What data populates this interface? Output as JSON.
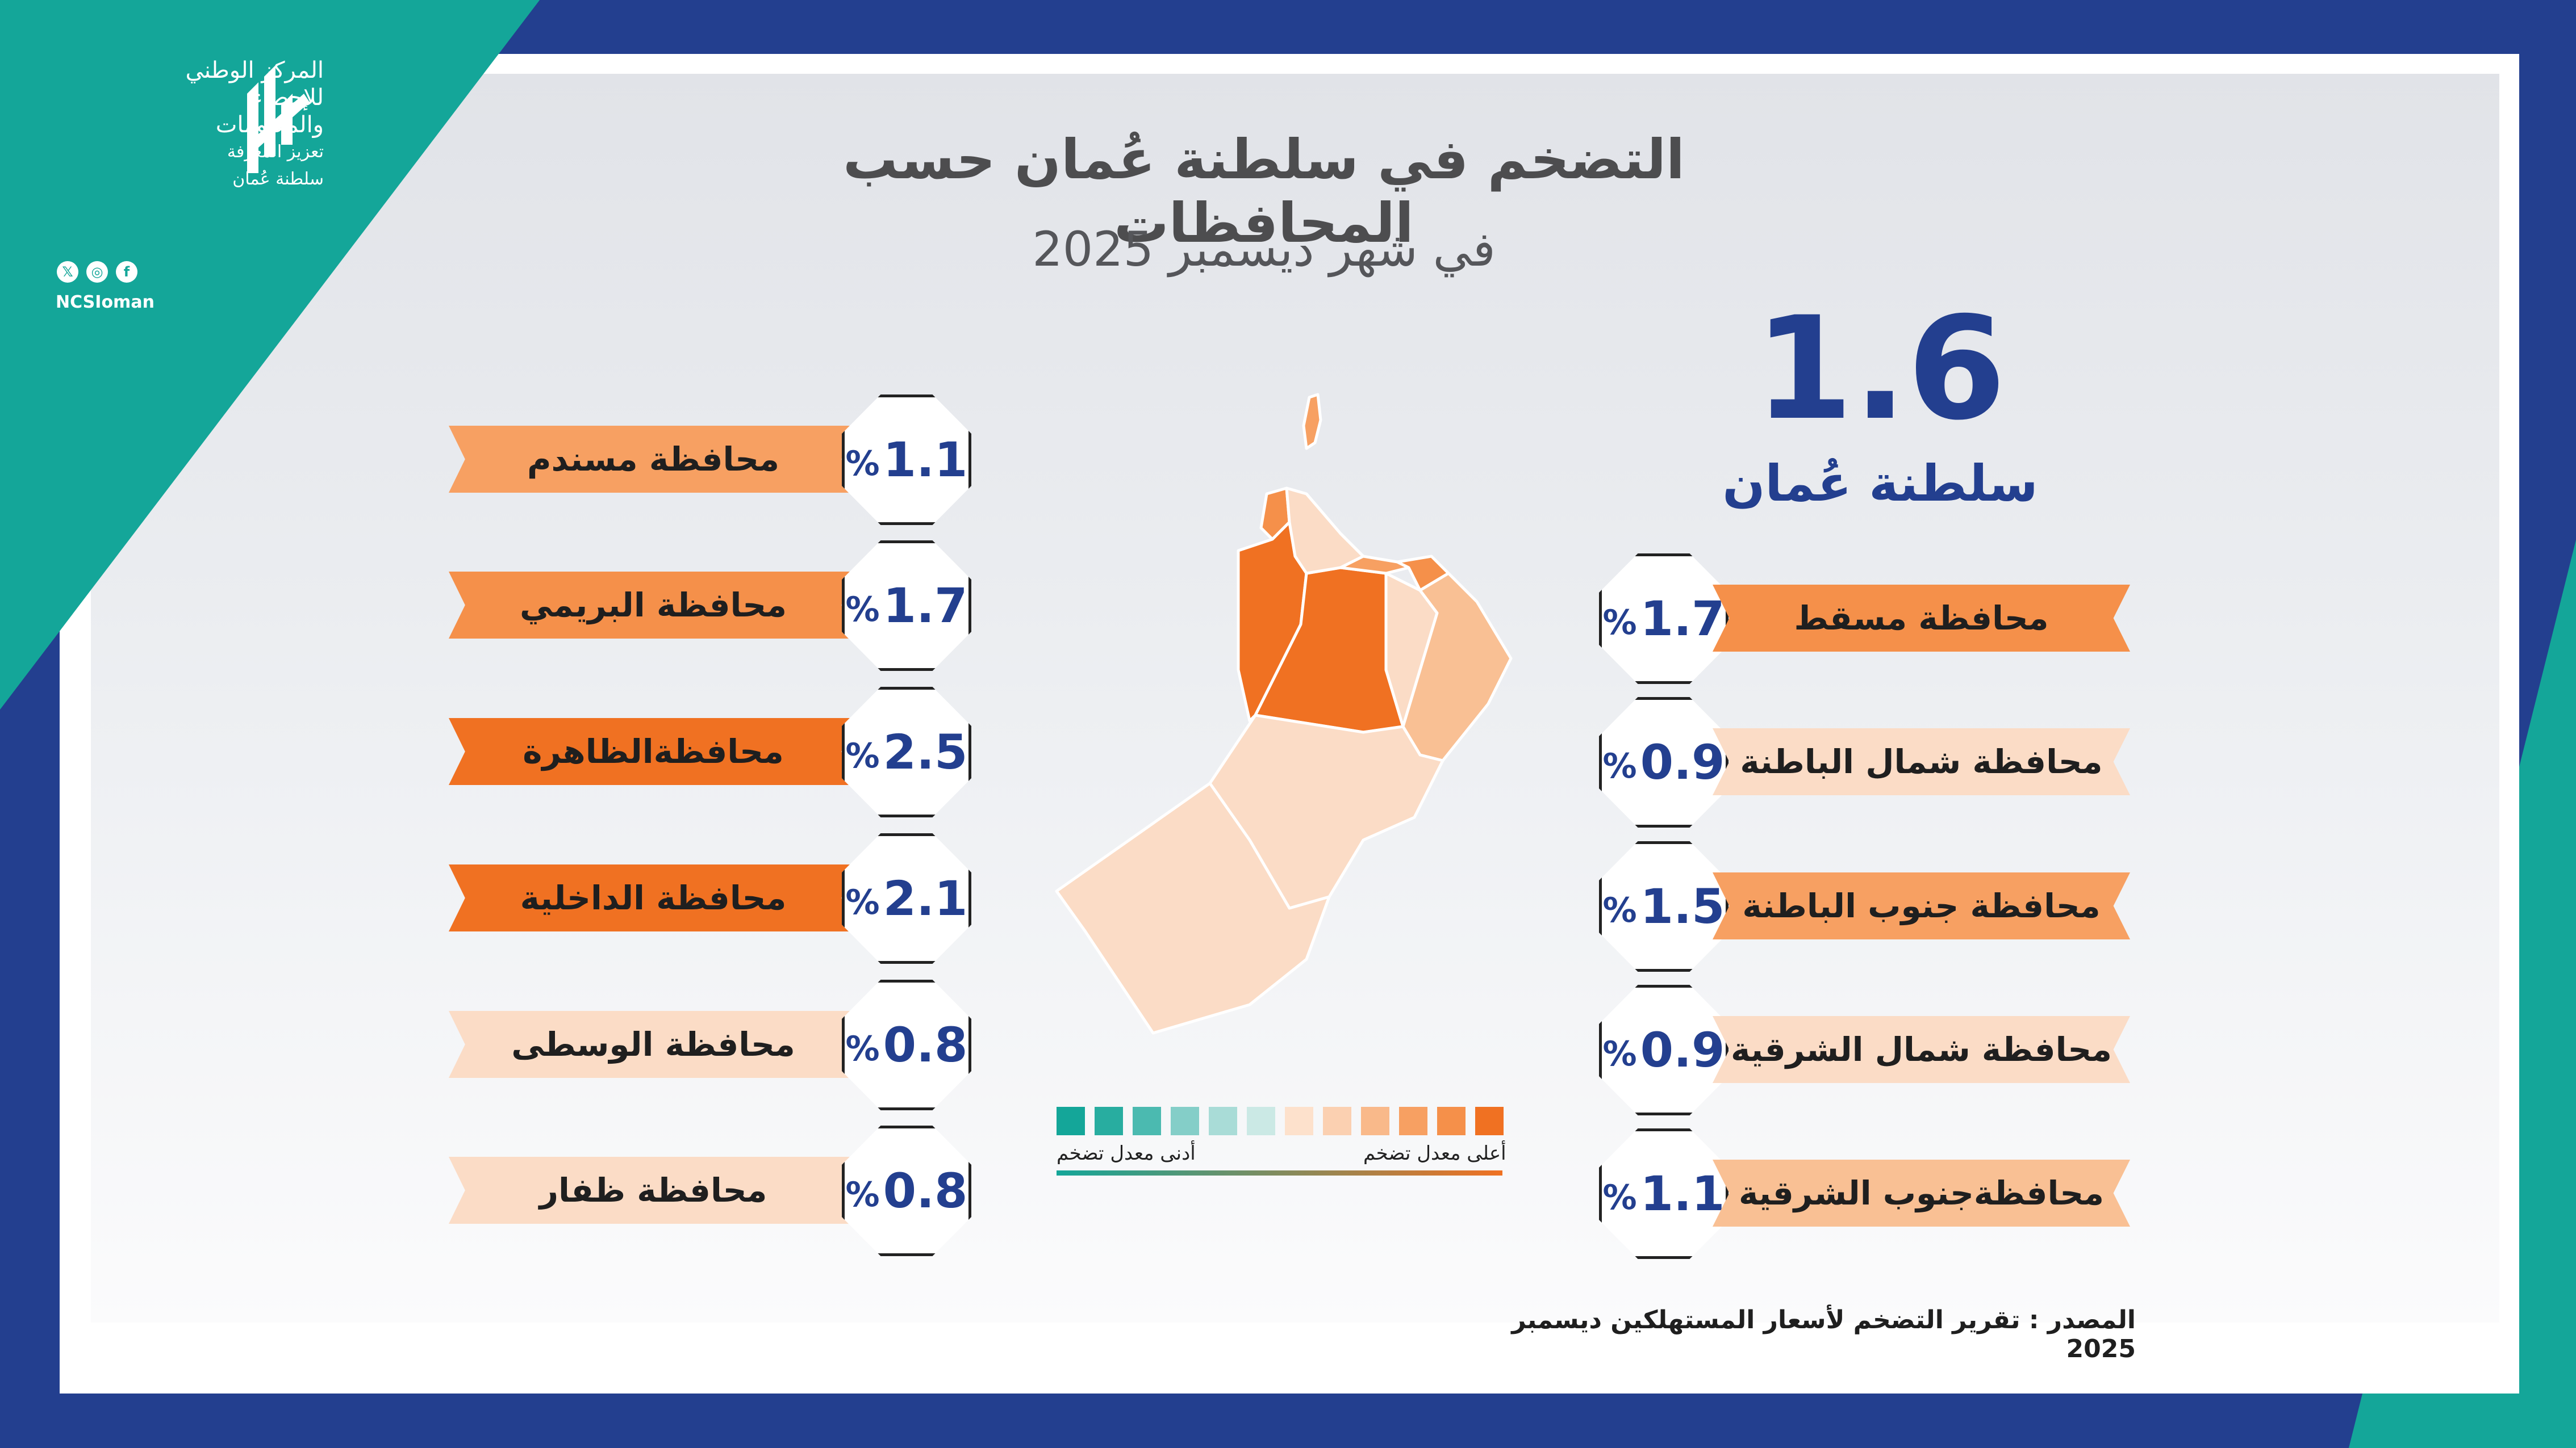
{
  "header": {
    "title": "التضخم في سلطنة عُمان حسب المحافظات",
    "subtitle": "في شهر ديسمبر 2025"
  },
  "logo": {
    "line1": "المركز الوطني",
    "line2": "للإحصاء",
    "line3": "والمعلومات",
    "line4": "تعزيز المعرفة",
    "line5": "سلطنة عُمان",
    "handle": "NCSIoman",
    "social_icons": [
      "x-icon",
      "instagram-icon",
      "facebook-icon"
    ]
  },
  "national": {
    "value": "1.6",
    "name": "سلطنة عُمان"
  },
  "percent_sign": "%",
  "left_list": [
    {
      "name": "محافظة مسندم",
      "value": "1.1",
      "color": "#f7a062"
    },
    {
      "name": "محافظة البريمي",
      "value": "1.7",
      "color": "#f5904a"
    },
    {
      "name": "محافظةالظاهرة",
      "value": "2.5",
      "color": "#f07122"
    },
    {
      "name": "محافظة الداخلية",
      "value": "2.1",
      "color": "#f07122"
    },
    {
      "name": "محافظة الوسطى",
      "value": "0.8",
      "color": "#fbdcc6"
    },
    {
      "name": "محافظة ظفار",
      "value": "0.8",
      "color": "#fbdcc6"
    }
  ],
  "right_list": [
    {
      "name": "محافظة مسقط",
      "value": "1.7",
      "color": "#f5904a"
    },
    {
      "name": "محافظة شمال الباطنة",
      "value": "0.9",
      "color": "#fbdcc6"
    },
    {
      "name": "محافظة جنوب الباطنة",
      "value": "1.5",
      "color": "#f7a062"
    },
    {
      "name": "محافظة شمال الشرقية",
      "value": "0.9",
      "color": "#fbdcc6"
    },
    {
      "name": "محافظةجنوب الشرقية",
      "value": "1.1",
      "color": "#f9c094"
    }
  ],
  "legend": {
    "low_label": "أدنى معدل تضخم",
    "high_label": "أعلى معدل تضخم",
    "colors": [
      "#14a699",
      "#28ada0",
      "#4bbab0",
      "#84cec8",
      "#a9dcd7",
      "#cbe9e5",
      "#fde1cc",
      "#fbd0b1",
      "#f9b98a",
      "#f7a062",
      "#f5904a",
      "#f07122"
    ]
  },
  "source": "المصدر : تقرير التضخم لأسعار المستهلكين ديسمبر 2025"
}
